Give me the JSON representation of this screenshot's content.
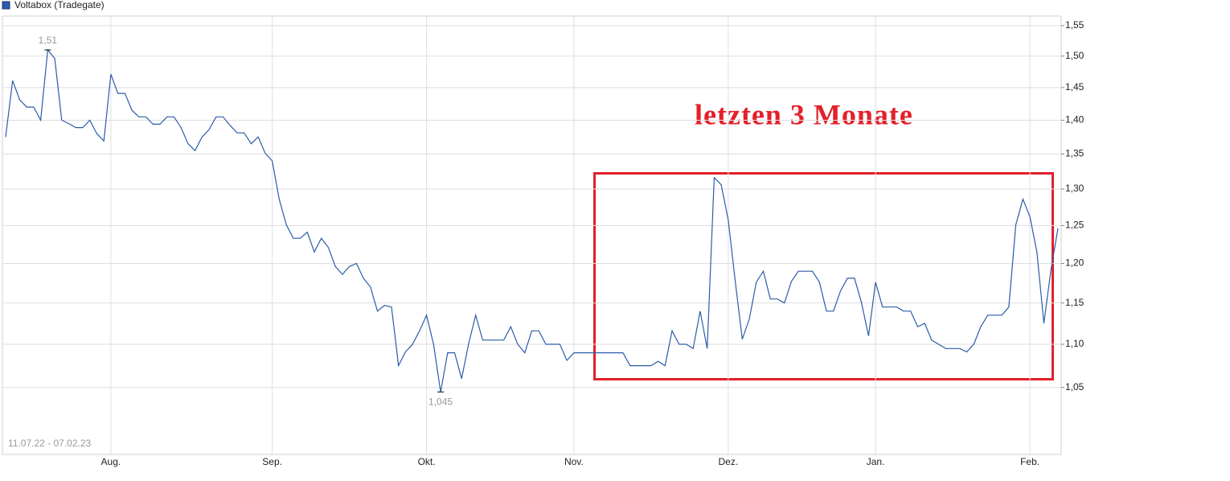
{
  "chart_data": {
    "type": "line",
    "series": [
      {
        "name": "Voltabox (Tradegate)",
        "color": "#2b5ca8",
        "values": [
          1.375,
          1.461,
          1.431,
          1.42,
          1.42,
          1.4,
          1.51,
          1.496,
          1.4,
          1.395,
          1.389,
          1.389,
          1.4,
          1.38,
          1.369,
          1.471,
          1.441,
          1.441,
          1.415,
          1.405,
          1.405,
          1.394,
          1.394,
          1.405,
          1.405,
          1.389,
          1.365,
          1.355,
          1.375,
          1.386,
          1.405,
          1.405,
          1.392,
          1.381,
          1.381,
          1.365,
          1.375,
          1.351,
          1.34,
          1.286,
          1.251,
          1.233,
          1.233,
          1.241,
          1.215,
          1.233,
          1.221,
          1.196,
          1.186,
          1.196,
          1.2,
          1.181,
          1.17,
          1.14,
          1.147,
          1.145,
          1.075,
          1.091,
          1.1,
          1.116,
          1.135,
          1.1,
          1.045,
          1.09,
          1.09,
          1.06,
          1.101,
          1.135,
          1.105,
          1.105,
          1.105,
          1.105,
          1.121,
          1.1,
          1.09,
          1.116,
          1.116,
          1.1,
          1.1,
          1.1,
          1.081,
          1.09,
          1.09,
          1.09,
          1.09,
          1.09,
          1.09,
          1.09,
          1.09,
          1.075,
          1.075,
          1.075,
          1.075,
          1.08,
          1.075,
          1.116,
          1.1,
          1.1,
          1.095,
          1.14,
          1.095,
          1.316,
          1.306,
          1.258,
          1.177,
          1.106,
          1.13,
          1.176,
          1.19,
          1.155,
          1.155,
          1.15,
          1.177,
          1.19,
          1.19,
          1.19,
          1.176,
          1.14,
          1.14,
          1.165,
          1.181,
          1.181,
          1.15,
          1.11,
          1.176,
          1.145,
          1.145,
          1.145,
          1.14,
          1.14,
          1.121,
          1.125,
          1.105,
          1.1,
          1.095,
          1.095,
          1.095,
          1.091,
          1.1,
          1.121,
          1.135,
          1.135,
          1.135,
          1.145,
          1.251,
          1.286,
          1.262,
          1.215,
          1.125,
          1.192,
          1.246
        ]
      }
    ],
    "categories": [
      null,
      null,
      null,
      null,
      null,
      null,
      null,
      null,
      null,
      null,
      null,
      null,
      null,
      null,
      null,
      "Aug.",
      null,
      null,
      null,
      null,
      null,
      null,
      null,
      null,
      null,
      null,
      null,
      null,
      null,
      null,
      null,
      null,
      null,
      null,
      null,
      null,
      null,
      null,
      "Sep.",
      null,
      null,
      null,
      null,
      null,
      null,
      null,
      null,
      null,
      null,
      null,
      null,
      null,
      null,
      null,
      null,
      null,
      null,
      null,
      null,
      null,
      "Okt.",
      null,
      null,
      null,
      null,
      null,
      null,
      null,
      null,
      null,
      null,
      null,
      null,
      null,
      null,
      null,
      null,
      null,
      null,
      null,
      null,
      "Nov.",
      null,
      null,
      null,
      null,
      null,
      null,
      null,
      null,
      null,
      null,
      null,
      null,
      null,
      null,
      null,
      null,
      null,
      null,
      null,
      null,
      null,
      "Dez.",
      null,
      null,
      null,
      null,
      null,
      null,
      null,
      null,
      null,
      null,
      null,
      null,
      null,
      null,
      null,
      null,
      null,
      null,
      null,
      null,
      "Jan.",
      null,
      null,
      null,
      null,
      null,
      null,
      null,
      null,
      null,
      null,
      null,
      null,
      null,
      null,
      null,
      null,
      null,
      null,
      null,
      null,
      null,
      "Feb.",
      null,
      null,
      null,
      null
    ],
    "ylim": [
      0.977,
      1.566
    ],
    "log_scale": true,
    "yticks": [
      {
        "value": 1.05,
        "label": "1,05"
      },
      {
        "value": 1.1,
        "label": "1,10"
      },
      {
        "value": 1.15,
        "label": "1,15"
      },
      {
        "value": 1.2,
        "label": "1,20"
      },
      {
        "value": 1.25,
        "label": "1,25"
      },
      {
        "value": 1.3,
        "label": "1,30"
      },
      {
        "value": 1.35,
        "label": "1,35"
      },
      {
        "value": 1.4,
        "label": "1,40"
      },
      {
        "value": 1.45,
        "label": "1,45"
      },
      {
        "value": 1.5,
        "label": "1,50"
      },
      {
        "value": 1.55,
        "label": "1,55"
      }
    ],
    "grid": true,
    "high_label": "1,51",
    "low_label": "1,045",
    "date_range": "11.07.22 - 07.02.23",
    "annotation": "letzten 3 Monate"
  }
}
